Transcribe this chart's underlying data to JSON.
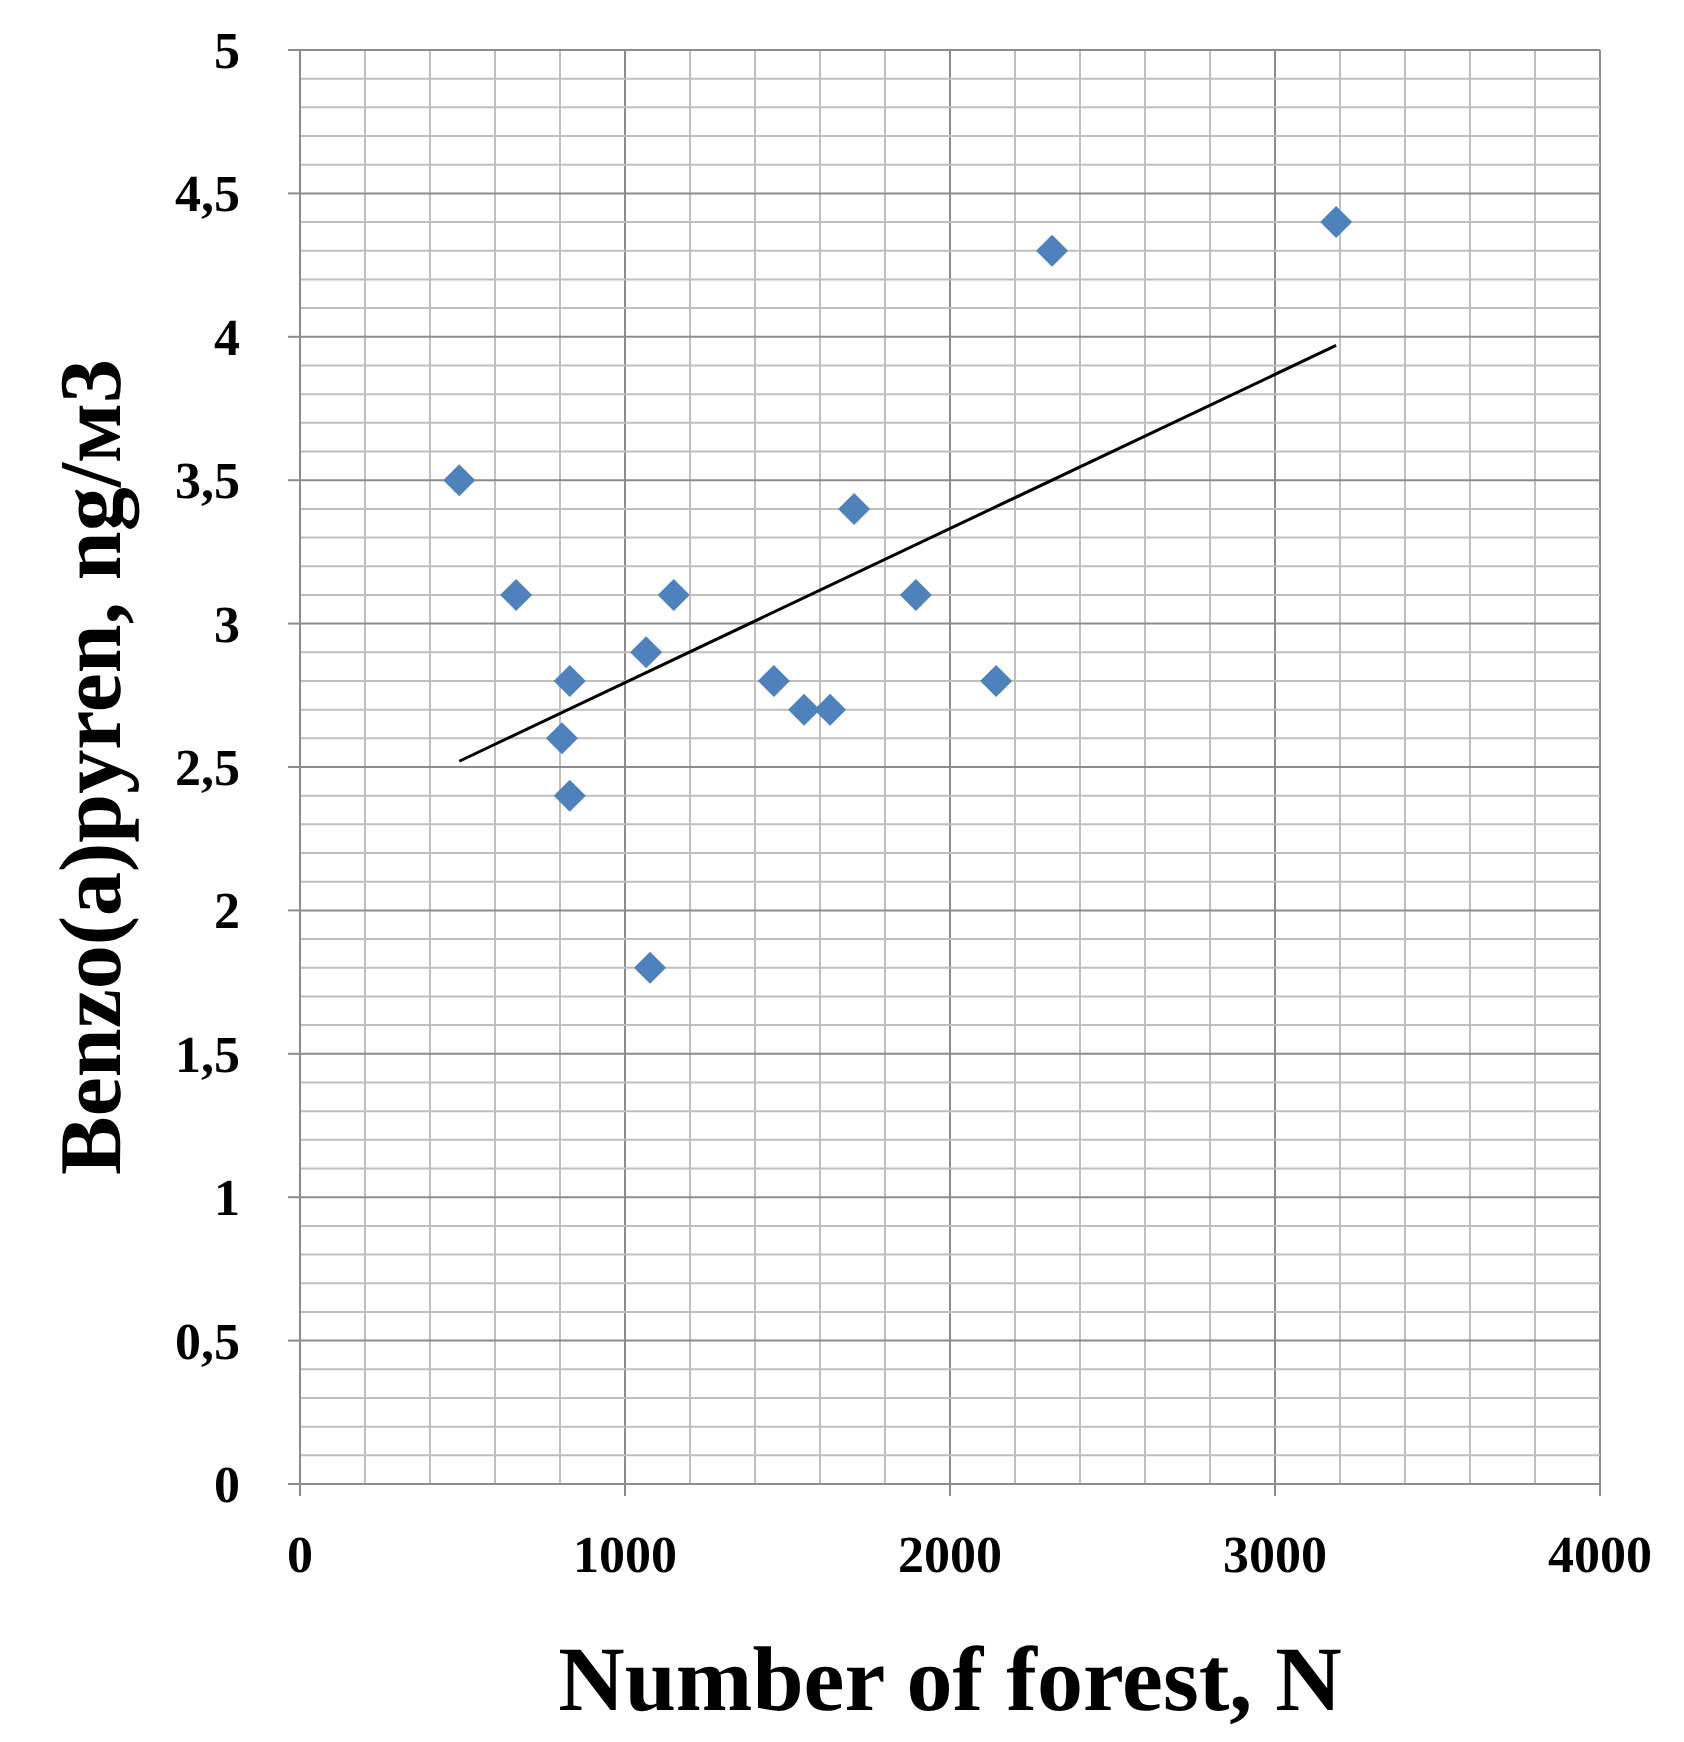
{
  "chart_data": {
    "type": "scatter",
    "xlabel": "Number of forest, N",
    "ylabel": "Benzo(a)pyren,  ng/м3",
    "xlim": [
      0,
      4000
    ],
    "xticks": [
      0,
      1000,
      2000,
      3000,
      4000
    ],
    "ylim": [
      0,
      5
    ],
    "yticks": [
      0,
      {
        "value": 0.5,
        "label": "0,5"
      },
      1,
      {
        "value": 1.5,
        "label": "1,5"
      },
      2,
      {
        "value": 2.5,
        "label": "2,5"
      },
      3,
      {
        "value": 3.5,
        "label": "3,5"
      },
      4,
      {
        "value": 4.5,
        "label": "4,5"
      },
      5
    ],
    "grid": true,
    "series": [
      {
        "marker": "diamond",
        "color": "#4f81bd",
        "x": [
          490,
          665,
          830,
          806,
          830,
          1065,
          1150,
          1077,
          1458,
          1551,
          1631,
          1705,
          1895,
          2142,
          2314,
          3188
        ],
        "values": [
          3.5,
          3.1,
          2.8,
          2.6,
          2.4,
          2.9,
          3.1,
          1.8,
          2.8,
          2.7,
          2.7,
          3.4,
          3.1,
          2.8,
          4.3,
          4.4
        ]
      },
      {
        "type": "line",
        "marker": "none",
        "color": "#000000",
        "x": [
          490,
          3188
        ],
        "values": [
          2.52,
          3.97
        ]
      }
    ]
  }
}
